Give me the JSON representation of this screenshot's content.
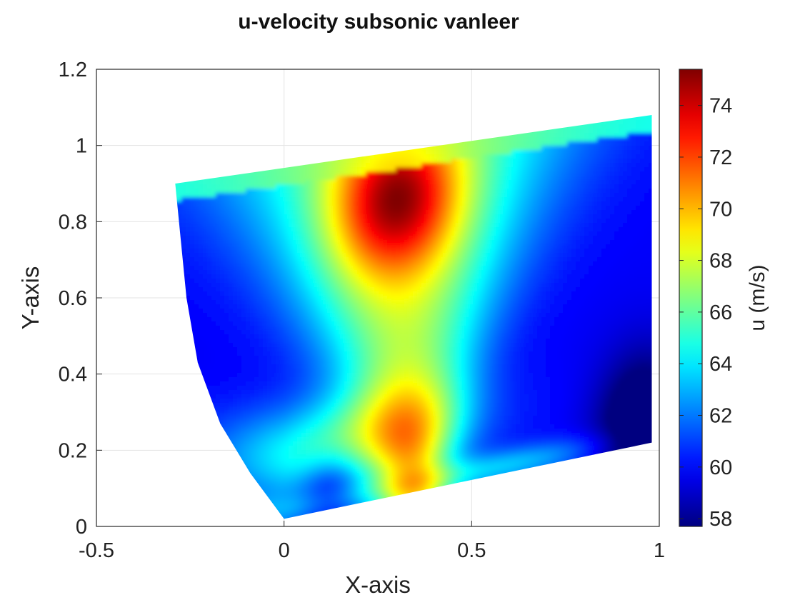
{
  "chart_data": {
    "type": "heatmap",
    "title": "u-velocity subsonic vanleer",
    "xlabel": "X-axis",
    "ylabel": "Y-axis",
    "xlim": [
      -0.5,
      1
    ],
    "ylim": [
      0,
      1.2
    ],
    "x_ticks": [
      "-0.5",
      "0",
      "0.5",
      "1"
    ],
    "y_ticks": [
      "0",
      "0.2",
      "0.4",
      "0.6",
      "0.8",
      "1",
      "1.2"
    ],
    "grid": true,
    "colormap": "jet",
    "colorbar": {
      "label": "u (m/s)",
      "range": [
        57.7,
        75.4
      ],
      "ticks": [
        "58",
        "60",
        "62",
        "64",
        "66",
        "68",
        "70",
        "72",
        "74"
      ]
    },
    "domain_corners": {
      "top_left": [
        -0.29,
        0.9
      ],
      "top_right": [
        0.98,
        1.08
      ],
      "bottom_right": [
        0.98,
        0.22
      ],
      "bottom_left": [
        0.0,
        0.02
      ]
    },
    "left_boundary": [
      [
        -0.29,
        0.9
      ],
      [
        -0.26,
        0.6
      ],
      [
        -0.23,
        0.43
      ],
      [
        -0.17,
        0.27
      ],
      [
        -0.09,
        0.14
      ],
      [
        0.0,
        0.02
      ]
    ],
    "field_features": [
      {
        "label": "max",
        "x": 0.3,
        "y": 0.87,
        "value": 75.4
      },
      {
        "label": "min",
        "x": 0.97,
        "y": 0.23,
        "value": 57.8
      }
    ]
  }
}
